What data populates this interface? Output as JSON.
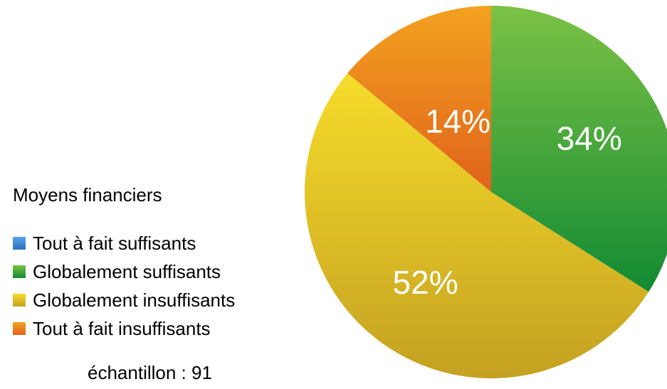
{
  "chart_data": {
    "type": "pie",
    "legend_title": "Moyens financiers",
    "legend_position": "left",
    "categories": [
      "Tout à fait suffisants",
      "Globalement suffisants",
      "Globalement insuffisants",
      "Tout à fait insuffisants"
    ],
    "values": [
      0,
      34,
      52,
      14
    ],
    "labels": [
      "",
      "34%",
      "52%",
      "14%"
    ],
    "colors": [
      "#3b86d6",
      "#4ea33a",
      "#e8c21e",
      "#ea7d16"
    ],
    "gradients": [
      [
        "#5da3ea",
        "#2a6fbe"
      ],
      [
        "#7cc245",
        "#128a33"
      ],
      [
        "#f6dc2a",
        "#c4a122"
      ],
      [
        "#f3a21f",
        "#e0621b"
      ]
    ],
    "start_angle_deg": 0,
    "direction": "clockwise",
    "footnote": "échantillon : 91"
  }
}
